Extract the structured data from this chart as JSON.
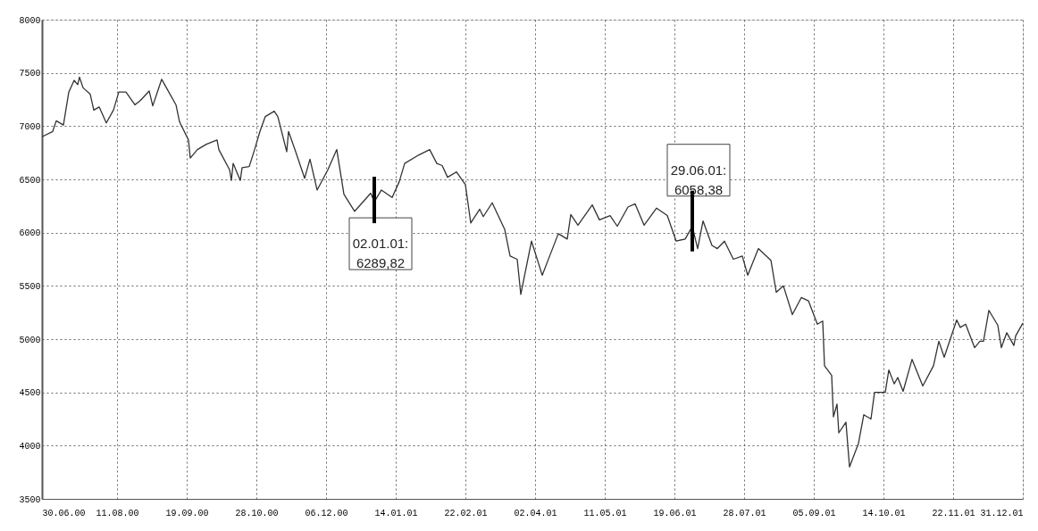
{
  "chart_data": {
    "type": "line",
    "x": [
      "2000-06-30",
      "2000-07-06",
      "2000-07-08",
      "2000-07-12",
      "2000-07-15",
      "2000-07-18",
      "2000-07-20",
      "2000-07-21",
      "2000-07-23",
      "2000-07-27",
      "2000-07-29",
      "2000-08-01",
      "2000-08-05",
      "2000-08-09",
      "2000-08-12",
      "2000-08-16",
      "2000-08-21",
      "2000-08-24",
      "2000-08-29",
      "2000-08-31",
      "2000-09-05",
      "2000-09-08",
      "2000-09-13",
      "2000-09-15",
      "2000-09-20",
      "2000-09-21",
      "2000-09-25",
      "2000-09-30",
      "2000-10-06",
      "2000-10-07",
      "2000-10-13",
      "2000-10-14",
      "2000-10-15",
      "2000-10-19",
      "2000-10-20",
      "2000-10-24",
      "2000-10-27",
      "2000-10-30",
      "2000-11-02",
      "2000-11-07",
      "2000-11-09",
      "2000-11-14",
      "2000-11-15",
      "2000-11-19",
      "2000-11-24",
      "2000-11-27",
      "2000-12-01",
      "2000-12-07",
      "2000-12-12",
      "2000-12-16",
      "2000-12-22",
      "2000-12-31",
      "2001-01-02",
      "2001-01-06",
      "2001-01-12",
      "2001-01-16",
      "2001-01-19",
      "2001-01-27",
      "2001-02-02",
      "2001-02-06",
      "2001-02-09",
      "2001-02-12",
      "2001-02-17",
      "2001-02-22",
      "2001-02-25",
      "2001-03-02",
      "2001-03-04",
      "2001-03-09",
      "2001-03-16",
      "2001-03-19",
      "2001-03-23",
      "2001-03-25",
      "2001-03-31",
      "2001-04-06",
      "2001-04-09",
      "2001-04-15",
      "2001-04-20",
      "2001-04-22",
      "2001-04-26",
      "2001-05-04",
      "2001-05-08",
      "2001-05-14",
      "2001-05-18",
      "2001-05-24",
      "2001-05-28",
      "2001-06-02",
      "2001-06-09",
      "2001-06-15",
      "2001-06-20",
      "2001-06-25",
      "2001-06-29",
      "2001-07-02",
      "2001-07-05",
      "2001-07-10",
      "2001-07-13",
      "2001-07-17",
      "2001-07-22",
      "2001-07-27",
      "2001-07-30",
      "2001-08-05",
      "2001-08-12",
      "2001-08-15",
      "2001-08-19",
      "2001-08-24",
      "2001-08-29",
      "2001-09-02",
      "2001-09-07",
      "2001-09-10",
      "2001-09-11",
      "2001-09-15",
      "2001-09-16",
      "2001-09-18",
      "2001-09-19",
      "2001-09-23",
      "2001-09-25",
      "2001-09-30",
      "2001-10-03",
      "2001-10-07",
      "2001-10-09",
      "2001-10-15",
      "2001-10-17",
      "2001-10-20",
      "2001-10-22",
      "2001-10-25",
      "2001-10-30",
      "2001-11-05",
      "2001-11-11",
      "2001-11-14",
      "2001-11-17",
      "2001-11-24",
      "2001-11-26",
      "2001-11-29",
      "2001-12-04",
      "2001-12-07",
      "2001-12-09",
      "2001-12-12",
      "2001-12-17",
      "2001-12-19",
      "2001-12-22",
      "2001-12-26",
      "2001-12-27",
      "2001-12-31"
    ],
    "series": [
      {
        "color": "#333333",
        "values": [
          6900,
          6950,
          7050,
          7010,
          7320,
          7430,
          7390,
          7460,
          7360,
          7300,
          7150,
          7180,
          7030,
          7150,
          7320,
          7320,
          7200,
          7240,
          7330,
          7190,
          7440,
          7350,
          7200,
          7040,
          6870,
          6700,
          6780,
          6830,
          6870,
          6780,
          6590,
          6490,
          6650,
          6490,
          6610,
          6620,
          6780,
          6950,
          7090,
          7140,
          7090,
          6760,
          6950,
          6760,
          6510,
          6690,
          6400,
          6590,
          6780,
          6360,
          6200,
          6370,
          6289.82,
          6400,
          6330,
          6480,
          6650,
          6730,
          6780,
          6650,
          6630,
          6520,
          6570,
          6450,
          6090,
          6220,
          6150,
          6280,
          6030,
          5780,
          5750,
          5420,
          5920,
          5600,
          5730,
          5990,
          5940,
          6170,
          6070,
          6260,
          6120,
          6160,
          6060,
          6240,
          6270,
          6070,
          6230,
          6160,
          5920,
          5940,
          6058.38,
          5850,
          6110,
          5880,
          5850,
          5920,
          5750,
          5780,
          5600,
          5850,
          5740,
          5440,
          5500,
          5230,
          5390,
          5360,
          5140,
          5170,
          4750,
          4660,
          4270,
          4390,
          4120,
          4220,
          3800,
          4020,
          4290,
          4250,
          4500,
          4500,
          4710,
          4580,
          4640,
          4510,
          4810,
          4560,
          4750,
          4980,
          4830,
          5180,
          5110,
          5140,
          4920,
          4980,
          4980,
          5270,
          5130,
          4920,
          5060,
          4940,
          5030,
          5150
        ]
      }
    ],
    "xlim": [
      "2000-06-30",
      "2001-12-31"
    ],
    "xticks": [
      {
        "value": "2000-06-30",
        "label": "30.06.00"
      },
      {
        "value": "2000-08-11",
        "label": "11.08.00"
      },
      {
        "value": "2000-09-19",
        "label": "19.09.00"
      },
      {
        "value": "2000-10-28",
        "label": "28.10.00"
      },
      {
        "value": "2000-12-06",
        "label": "06.12.00"
      },
      {
        "value": "2001-01-14",
        "label": "14.01.01"
      },
      {
        "value": "2001-02-22",
        "label": "22.02.01"
      },
      {
        "value": "2001-04-02",
        "label": "02.04.01"
      },
      {
        "value": "2001-05-11",
        "label": "11.05.01"
      },
      {
        "value": "2001-06-19",
        "label": "19.06.01"
      },
      {
        "value": "2001-07-28",
        "label": "28.07.01"
      },
      {
        "value": "2001-09-05",
        "label": "05.09.01"
      },
      {
        "value": "2001-10-14",
        "label": "14.10.01"
      },
      {
        "value": "2001-11-22",
        "label": "22.11.01"
      },
      {
        "value": "2001-12-31",
        "label": "31.12.01"
      }
    ],
    "ylim": [
      3500,
      8000
    ],
    "yticks": [
      3500,
      4000,
      4500,
      5000,
      5500,
      6000,
      6500,
      7000,
      7500,
      8000
    ],
    "grid": true,
    "legend": false,
    "marker": "none",
    "line_style": "solid",
    "annotations": [
      {
        "text": "02.01.01:\n6289,82",
        "x": "2001-01-02",
        "y": 6289.82
      },
      {
        "text": "29.06.01:\n6058,38",
        "x": "2001-06-29",
        "y": 6058.38
      }
    ]
  }
}
